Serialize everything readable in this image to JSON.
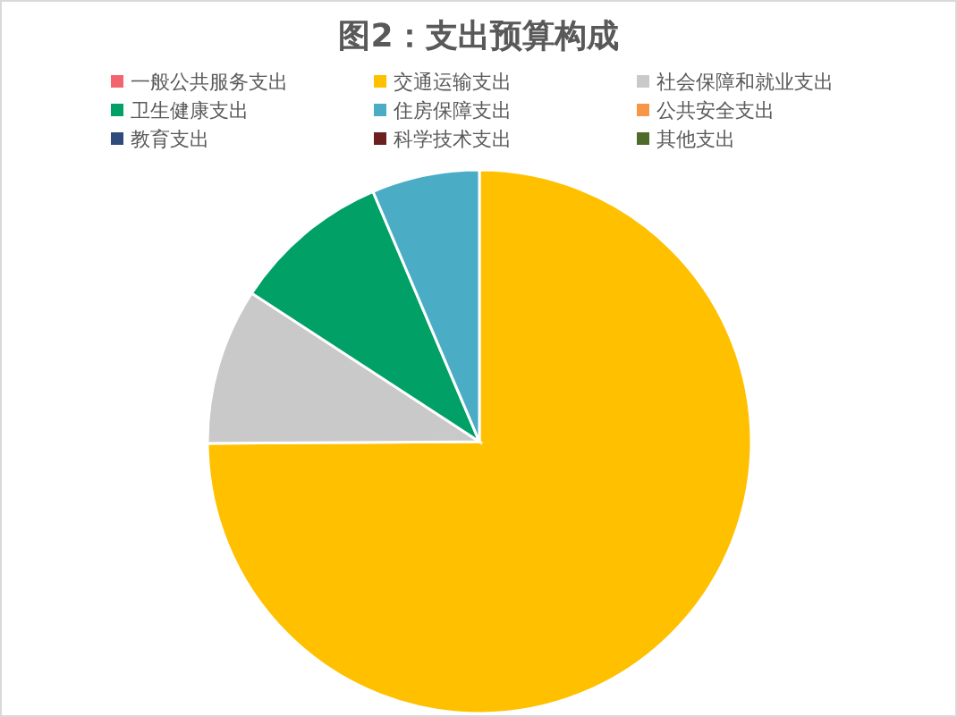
{
  "chart_data": {
    "type": "pie",
    "title": "图2：支出预算构成",
    "categories": [
      "一般公共服务支出",
      "交通运输支出",
      "社会保障和就业支出",
      "卫生健康支出",
      "住房保障支出",
      "公共安全支出",
      "教育支出",
      "科学技术支出",
      "其他支出"
    ],
    "values": [
      0,
      74.9,
      9.3,
      9.4,
      6.4,
      0,
      0,
      0,
      0
    ],
    "colors": [
      "#f4646e",
      "#ffc000",
      "#c9c9c9",
      "#00a066",
      "#4bacc6",
      "#f79646",
      "#2f4b7c",
      "#6b1f1f",
      "#4e6b2a"
    ],
    "legend": "top"
  }
}
